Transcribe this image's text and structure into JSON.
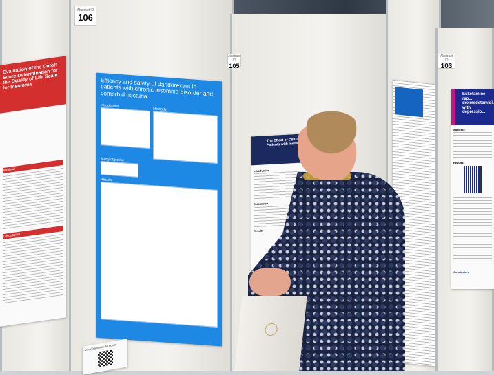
{
  "boards": [
    {
      "number": "106",
      "label": "Abstract ID"
    },
    {
      "number": "105",
      "label": "Abstract ID"
    },
    {
      "number": "103",
      "label": "Abstract ID"
    }
  ],
  "posters": {
    "left": {
      "title": "Evaluation of the Cutoff Score Determination for the Quality of Life Scale for Insomnia",
      "sections": [
        "Method",
        "Discussion"
      ]
    },
    "main": {
      "title": "Efficacy and safety of daridorexant in patients with chronic insomnia disorder and comorbid nocturia",
      "sections": [
        "Introduction",
        "Methods",
        "Study objective",
        "Results"
      ]
    },
    "middle": {
      "title": "The Effect of CBT-I on ... Patients with Insom...",
      "sections": [
        "Introduction",
        "Method",
        "Discussion",
        "Results"
      ]
    },
    "right": {
      "title": "Esketamine rap... dexmedetomidi... with depressio...",
      "sections": [
        "Abstract:",
        "Results:",
        "Conclusion:"
      ]
    }
  },
  "qr_card": {
    "title": "View/Download the poster"
  },
  "colors": {
    "main_poster": "#1e88e5",
    "left_header": "#d32f2f",
    "middle_header": "#1a2a5e",
    "right_header": "#1b2a8f",
    "shirt": "#1a2440"
  }
}
